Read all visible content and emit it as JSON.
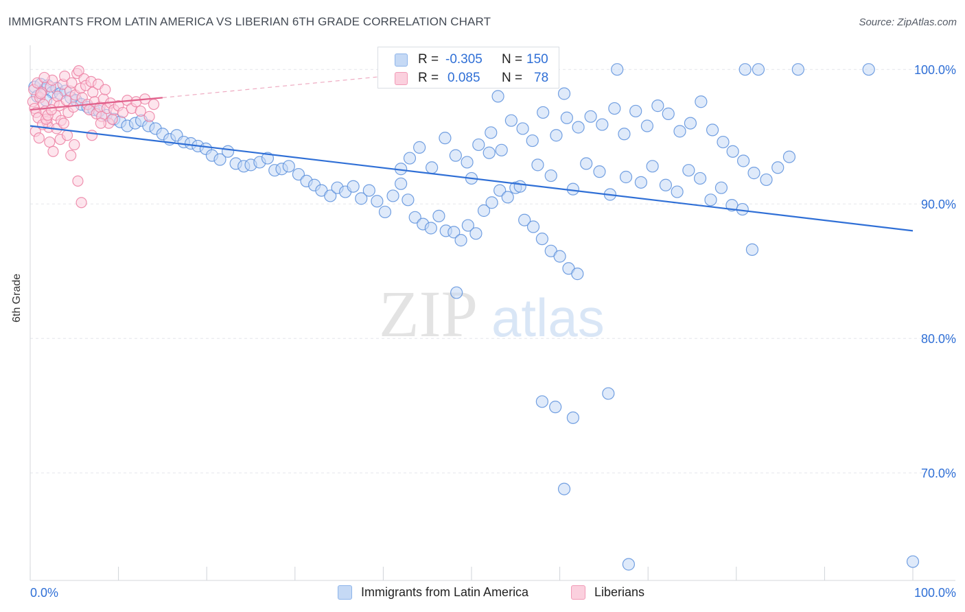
{
  "header": {
    "title": "IMMIGRANTS FROM LATIN AMERICA VS LIBERIAN 6TH GRADE CORRELATION CHART",
    "source": "Source: ZipAtlas.com"
  },
  "watermark": {
    "zip": "ZIP",
    "atlas": "atlas"
  },
  "legend_top": {
    "rows": [
      {
        "r_label": "R =",
        "r_value": "-0.305",
        "n_label": "N =",
        "n_value": "150",
        "color": "#8db4ea",
        "fill": "#c5d9f5"
      },
      {
        "r_label": "R =",
        "r_value": "0.085",
        "n_label": "N =",
        "n_value": "78",
        "color": "#f19ab6",
        "fill": "#fbd0de"
      }
    ]
  },
  "legend_bottom": {
    "items": [
      {
        "label": "Immigrants from Latin America",
        "color": "#8db4ea",
        "fill": "#c5d9f5"
      },
      {
        "label": "Liberians",
        "color": "#f19ab6",
        "fill": "#fbd0de"
      }
    ]
  },
  "chart_data": {
    "type": "scatter",
    "title": "IMMIGRANTS FROM LATIN AMERICA VS LIBERIAN 6TH GRADE CORRELATION CHART",
    "xlabel": "",
    "ylabel": "6th Grade",
    "xlim": [
      0,
      100
    ],
    "ylim": [
      62,
      102
    ],
    "x_tick_labels": [
      "0.0%",
      "100.0%"
    ],
    "y_ticks": [
      70,
      80,
      90,
      100
    ],
    "y_tick_labels": [
      "70.0%",
      "80.0%",
      "90.0%",
      "100.0%"
    ],
    "grid": true,
    "series": [
      {
        "name": "Immigrants from Latin America",
        "color": "#5b8fdc",
        "fill": "#c5d9f5",
        "R": -0.305,
        "N": 150,
        "trend": {
          "x": [
            0,
            100
          ],
          "y": [
            95.8,
            88.0
          ]
        },
        "points": [
          [
            0.5,
            98.7
          ],
          [
            1.2,
            98.9
          ],
          [
            1.6,
            98.5
          ],
          [
            2.0,
            98.8
          ],
          [
            2.5,
            98.3
          ],
          [
            3.0,
            98.6
          ],
          [
            3.4,
            98.2
          ],
          [
            4.0,
            98.4
          ],
          [
            4.6,
            97.9
          ],
          [
            5.2,
            97.7
          ],
          [
            5.8,
            97.4
          ],
          [
            6.5,
            97.2
          ],
          [
            7.2,
            97.0
          ],
          [
            7.8,
            96.9
          ],
          [
            8.6,
            96.6
          ],
          [
            9.5,
            96.3
          ],
          [
            10.2,
            96.1
          ],
          [
            11.0,
            95.8
          ],
          [
            11.9,
            96.0
          ],
          [
            12.6,
            96.2
          ],
          [
            13.4,
            95.8
          ],
          [
            14.2,
            95.6
          ],
          [
            15.0,
            95.2
          ],
          [
            15.8,
            94.8
          ],
          [
            16.6,
            95.1
          ],
          [
            17.4,
            94.6
          ],
          [
            18.2,
            94.5
          ],
          [
            19.0,
            94.3
          ],
          [
            19.9,
            94.1
          ],
          [
            20.6,
            93.6
          ],
          [
            21.5,
            93.3
          ],
          [
            22.4,
            93.9
          ],
          [
            23.3,
            93.0
          ],
          [
            24.2,
            92.8
          ],
          [
            25.0,
            92.9
          ],
          [
            26.0,
            93.1
          ],
          [
            26.9,
            93.4
          ],
          [
            27.7,
            92.5
          ],
          [
            28.5,
            92.6
          ],
          [
            29.3,
            92.8
          ],
          [
            30.4,
            92.2
          ],
          [
            31.3,
            91.7
          ],
          [
            32.2,
            91.4
          ],
          [
            33.0,
            91.0
          ],
          [
            34.0,
            90.6
          ],
          [
            34.8,
            91.2
          ],
          [
            35.7,
            90.9
          ],
          [
            36.6,
            91.3
          ],
          [
            37.5,
            90.4
          ],
          [
            38.4,
            91.0
          ],
          [
            39.3,
            90.2
          ],
          [
            40.2,
            89.4
          ],
          [
            41.1,
            90.6
          ],
          [
            42.0,
            91.5
          ],
          [
            42.8,
            90.3
          ],
          [
            43.6,
            89.0
          ],
          [
            44.5,
            88.5
          ],
          [
            45.4,
            88.2
          ],
          [
            46.3,
            89.1
          ],
          [
            47.1,
            88.0
          ],
          [
            48.0,
            87.9
          ],
          [
            48.8,
            87.3
          ],
          [
            49.6,
            88.4
          ],
          [
            50.5,
            87.8
          ],
          [
            51.4,
            89.5
          ],
          [
            52.3,
            90.1
          ],
          [
            53.2,
            91.0
          ],
          [
            54.1,
            90.5
          ],
          [
            55.0,
            91.2
          ],
          [
            56.0,
            88.8
          ],
          [
            57.0,
            88.3
          ],
          [
            58.0,
            87.4
          ],
          [
            59.0,
            86.5
          ],
          [
            60.0,
            86.1
          ],
          [
            61.0,
            85.2
          ],
          [
            62.0,
            84.8
          ],
          [
            48.3,
            83.4
          ],
          [
            43.0,
            93.4
          ],
          [
            44.1,
            94.2
          ],
          [
            45.5,
            92.7
          ],
          [
            47.0,
            94.9
          ],
          [
            48.2,
            93.6
          ],
          [
            49.5,
            93.1
          ],
          [
            50.8,
            94.4
          ],
          [
            52.2,
            95.3
          ],
          [
            53.4,
            94.0
          ],
          [
            54.5,
            96.2
          ],
          [
            55.8,
            95.6
          ],
          [
            56.9,
            94.7
          ],
          [
            58.1,
            96.8
          ],
          [
            59.6,
            95.1
          ],
          [
            60.8,
            96.4
          ],
          [
            62.1,
            95.7
          ],
          [
            63.5,
            96.5
          ],
          [
            64.8,
            95.9
          ],
          [
            66.2,
            97.1
          ],
          [
            67.3,
            95.2
          ],
          [
            68.6,
            96.9
          ],
          [
            69.9,
            95.8
          ],
          [
            71.1,
            97.3
          ],
          [
            72.3,
            96.7
          ],
          [
            73.6,
            95.4
          ],
          [
            74.8,
            96.0
          ],
          [
            76.0,
            97.6
          ],
          [
            77.3,
            95.5
          ],
          [
            78.5,
            94.6
          ],
          [
            79.6,
            93.9
          ],
          [
            80.8,
            93.2
          ],
          [
            82.0,
            92.3
          ],
          [
            83.4,
            91.8
          ],
          [
            84.7,
            92.7
          ],
          [
            86.0,
            93.5
          ],
          [
            66.5,
            100.0
          ],
          [
            81.0,
            100.0
          ],
          [
            82.5,
            100.0
          ],
          [
            87.0,
            100.0
          ],
          [
            95.0,
            100.0
          ],
          [
            53.0,
            98.0
          ],
          [
            60.5,
            98.2
          ],
          [
            42.0,
            92.6
          ],
          [
            50.0,
            91.9
          ],
          [
            52.0,
            93.8
          ],
          [
            55.5,
            91.3
          ],
          [
            57.5,
            92.9
          ],
          [
            59.0,
            92.1
          ],
          [
            61.5,
            91.1
          ],
          [
            63.0,
            93.0
          ],
          [
            64.5,
            92.4
          ],
          [
            65.7,
            90.7
          ],
          [
            67.5,
            92.0
          ],
          [
            69.2,
            91.6
          ],
          [
            70.5,
            92.8
          ],
          [
            72.0,
            91.4
          ],
          [
            73.3,
            90.9
          ],
          [
            74.6,
            92.5
          ],
          [
            75.9,
            91.9
          ],
          [
            77.1,
            90.3
          ],
          [
            78.3,
            91.2
          ],
          [
            79.5,
            89.9
          ],
          [
            80.7,
            89.6
          ],
          [
            81.8,
            86.6
          ],
          [
            58.0,
            75.3
          ],
          [
            59.5,
            74.9
          ],
          [
            61.5,
            74.1
          ],
          [
            65.5,
            75.9
          ],
          [
            60.5,
            68.8
          ],
          [
            67.8,
            63.2
          ],
          [
            100.0,
            63.4
          ],
          [
            0.8,
            98.0
          ],
          [
            1.8,
            97.7
          ]
        ]
      },
      {
        "name": "Liberians",
        "color": "#ec7fa2",
        "fill": "#fbd0de",
        "R": 0.085,
        "N": 78,
        "trend": {
          "x": [
            0,
            15
          ],
          "y": [
            97.0,
            97.9
          ]
        },
        "trend_ext": {
          "x": [
            15,
            45
          ],
          "y": [
            97.9,
            99.8
          ]
        },
        "points": [
          [
            0.3,
            97.6
          ],
          [
            0.5,
            97.1
          ],
          [
            0.7,
            96.8
          ],
          [
            0.9,
            96.4
          ],
          [
            1.1,
            97.9
          ],
          [
            1.3,
            98.3
          ],
          [
            1.5,
            97.4
          ],
          [
            1.7,
            96.9
          ],
          [
            1.9,
            96.1
          ],
          [
            2.1,
            95.7
          ],
          [
            2.3,
            98.7
          ],
          [
            2.5,
            99.2
          ],
          [
            2.7,
            97.5
          ],
          [
            2.9,
            96.6
          ],
          [
            3.1,
            98.0
          ],
          [
            3.3,
            97.3
          ],
          [
            3.5,
            96.2
          ],
          [
            3.7,
            98.9
          ],
          [
            3.9,
            99.5
          ],
          [
            4.1,
            97.7
          ],
          [
            4.3,
            96.8
          ],
          [
            4.5,
            98.4
          ],
          [
            4.7,
            99.0
          ],
          [
            4.9,
            97.2
          ],
          [
            5.1,
            98.1
          ],
          [
            5.3,
            99.7
          ],
          [
            5.5,
            99.9
          ],
          [
            5.7,
            98.6
          ],
          [
            5.9,
            97.9
          ],
          [
            6.1,
            99.3
          ],
          [
            6.3,
            98.8
          ],
          [
            6.5,
            97.4
          ],
          [
            6.7,
            97.0
          ],
          [
            6.9,
            99.1
          ],
          [
            7.1,
            98.3
          ],
          [
            7.3,
            97.6
          ],
          [
            7.5,
            96.7
          ],
          [
            7.7,
            98.9
          ],
          [
            7.9,
            97.2
          ],
          [
            8.1,
            96.5
          ],
          [
            8.3,
            97.8
          ],
          [
            8.5,
            98.5
          ],
          [
            8.7,
            97.1
          ],
          [
            8.9,
            96.0
          ],
          [
            9.1,
            97.5
          ],
          [
            9.3,
            96.3
          ],
          [
            9.5,
            97.0
          ],
          [
            10.0,
            97.3
          ],
          [
            10.5,
            96.8
          ],
          [
            11.0,
            97.7
          ],
          [
            11.5,
            97.1
          ],
          [
            12.0,
            97.6
          ],
          [
            12.5,
            96.9
          ],
          [
            13.0,
            97.8
          ],
          [
            13.5,
            96.5
          ],
          [
            14.0,
            97.4
          ],
          [
            0.6,
            95.4
          ],
          [
            1.0,
            94.9
          ],
          [
            1.4,
            95.9
          ],
          [
            1.8,
            96.3
          ],
          [
            2.2,
            94.6
          ],
          [
            2.6,
            93.9
          ],
          [
            3.0,
            95.6
          ],
          [
            3.4,
            94.8
          ],
          [
            3.8,
            96.0
          ],
          [
            4.2,
            95.1
          ],
          [
            4.6,
            93.6
          ],
          [
            5.0,
            94.4
          ],
          [
            5.4,
            91.7
          ],
          [
            0.4,
            98.5
          ],
          [
            0.8,
            99.0
          ],
          [
            1.2,
            98.2
          ],
          [
            1.6,
            99.4
          ],
          [
            2.0,
            96.6
          ],
          [
            2.4,
            97.0
          ],
          [
            5.8,
            90.1
          ],
          [
            7.0,
            95.1
          ],
          [
            8.0,
            96.0
          ]
        ]
      }
    ]
  }
}
